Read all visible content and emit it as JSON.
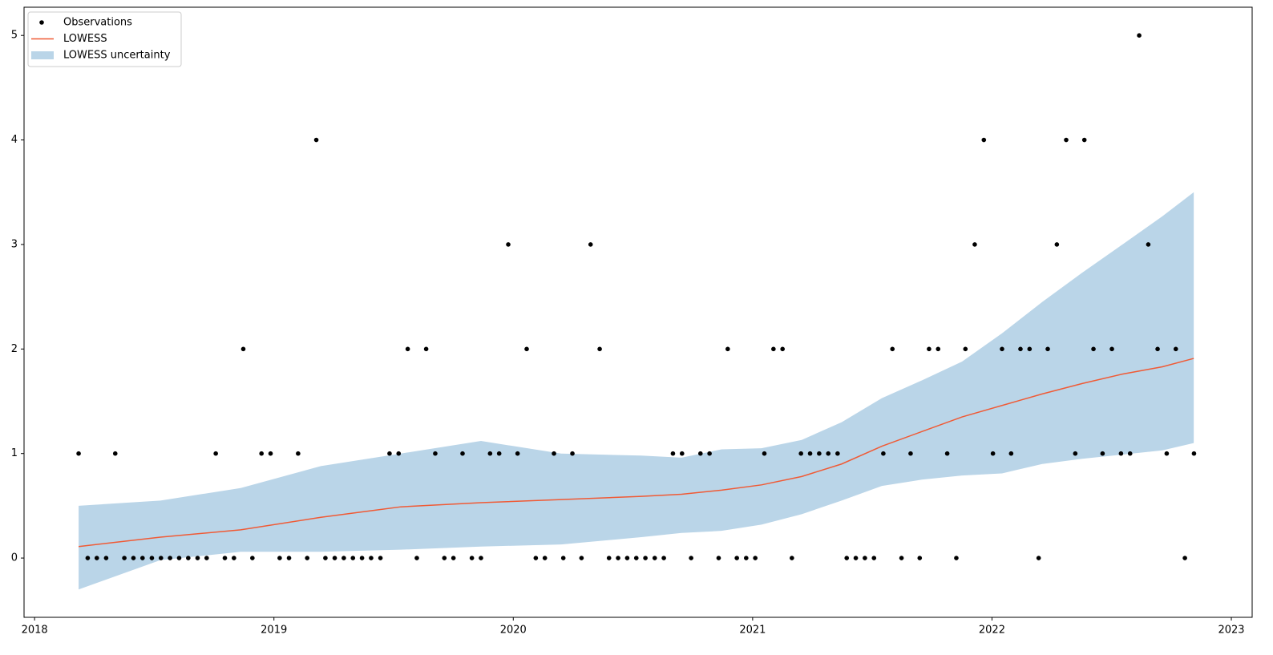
{
  "chart_data": {
    "type": "scatter",
    "xlim": [
      2017.956,
      2023.087
    ],
    "ylim": [
      -0.567,
      5.27
    ],
    "xticks": [
      2018,
      2019,
      2020,
      2021,
      2022,
      2023
    ],
    "yticks": [
      0,
      1,
      2,
      3,
      4,
      5
    ],
    "legend": "upper left",
    "series": [
      {
        "name": "Observations",
        "type": "scatter",
        "color": "#000000",
        "x": [
          2018.184,
          2018.222,
          2018.26,
          2018.299,
          2018.337,
          2018.375,
          2018.413,
          2018.451,
          2018.49,
          2018.528,
          2018.566,
          2018.604,
          2018.642,
          2018.681,
          2018.719,
          2018.757,
          2018.795,
          2018.833,
          2018.872,
          2018.91,
          2018.948,
          2018.986,
          2019.024,
          2019.063,
          2019.101,
          2019.139,
          2019.177,
          2019.215,
          2019.254,
          2019.292,
          2019.33,
          2019.368,
          2019.406,
          2019.445,
          2019.483,
          2019.521,
          2019.559,
          2019.597,
          2019.636,
          2019.674,
          2019.712,
          2019.75,
          2019.788,
          2019.827,
          2019.865,
          2019.903,
          2019.941,
          2019.979,
          2020.018,
          2020.056,
          2020.094,
          2020.132,
          2020.17,
          2020.209,
          2020.247,
          2020.285,
          2020.323,
          2020.361,
          2020.4,
          2020.438,
          2020.476,
          2020.514,
          2020.552,
          2020.591,
          2020.629,
          2020.667,
          2020.705,
          2020.743,
          2020.782,
          2020.82,
          2020.858,
          2020.896,
          2020.934,
          2020.973,
          2021.011,
          2021.049,
          2021.087,
          2021.125,
          2021.164,
          2021.202,
          2021.24,
          2021.278,
          2021.316,
          2021.355,
          2021.393,
          2021.431,
          2021.469,
          2021.507,
          2021.546,
          2021.584,
          2021.622,
          2021.66,
          2021.698,
          2021.737,
          2021.775,
          2021.813,
          2021.851,
          2021.889,
          2021.928,
          2021.966,
          2022.004,
          2022.042,
          2022.08,
          2022.119,
          2022.157,
          2022.195,
          2022.233,
          2022.271,
          2022.31,
          2022.348,
          2022.386,
          2022.424,
          2022.462,
          2022.501,
          2022.539,
          2022.577,
          2022.615,
          2022.653,
          2022.692,
          2022.73,
          2022.768,
          2022.806,
          2022.844
        ],
        "values": [
          1,
          0,
          0,
          0,
          1,
          0,
          0,
          0,
          0,
          0,
          0,
          0,
          0,
          0,
          0,
          1,
          0,
          0,
          2,
          0,
          1,
          1,
          0,
          0,
          1,
          0,
          4,
          0,
          0,
          0,
          0,
          0,
          0,
          0,
          1,
          1,
          2,
          0,
          2,
          1,
          0,
          0,
          1,
          0,
          0,
          1,
          1,
          3,
          1,
          2,
          0,
          0,
          1,
          0,
          1,
          0,
          3,
          2,
          0,
          0,
          0,
          0,
          0,
          0,
          0,
          1,
          1,
          0,
          1,
          1,
          0,
          2,
          0,
          0,
          0,
          1,
          2,
          2,
          0,
          1,
          1,
          1,
          1,
          1,
          0,
          0,
          0,
          0,
          1,
          2,
          0,
          1,
          0,
          2,
          2,
          1,
          0,
          2,
          3,
          4,
          1,
          2,
          1,
          2,
          2,
          0,
          2,
          3,
          4,
          1,
          4,
          2,
          1,
          2,
          1,
          1,
          5,
          3,
          2,
          1,
          2,
          0,
          1
        ]
      },
      {
        "name": "LOWESS",
        "type": "line",
        "color": "#f05a35",
        "x": [
          2018.184,
          2018.526,
          2018.861,
          2019.196,
          2019.53,
          2019.865,
          2020.2,
          2020.535,
          2020.703,
          2020.87,
          2021.037,
          2021.205,
          2021.372,
          2021.54,
          2021.707,
          2021.875,
          2022.042,
          2022.21,
          2022.377,
          2022.545,
          2022.712,
          2022.843
        ],
        "values": [
          0.11,
          0.2,
          0.27,
          0.39,
          0.49,
          0.53,
          0.56,
          0.59,
          0.61,
          0.65,
          0.7,
          0.78,
          0.9,
          1.07,
          1.21,
          1.35,
          1.46,
          1.57,
          1.67,
          1.76,
          1.83,
          1.91
        ]
      },
      {
        "name": "LOWESS uncertainty",
        "type": "band",
        "color": "#bad5e8",
        "x": [
          2018.184,
          2018.526,
          2018.861,
          2019.196,
          2019.53,
          2019.865,
          2020.2,
          2020.535,
          2020.703,
          2020.87,
          2021.037,
          2021.205,
          2021.372,
          2021.54,
          2021.707,
          2021.875,
          2022.042,
          2022.21,
          2022.377,
          2022.545,
          2022.712,
          2022.843
        ],
        "upper": [
          0.5,
          0.55,
          0.67,
          0.88,
          1.0,
          1.12,
          1.0,
          0.98,
          0.96,
          1.04,
          1.05,
          1.13,
          1.3,
          1.53,
          1.7,
          1.88,
          2.15,
          2.45,
          2.73,
          3.0,
          3.27,
          3.5
        ],
        "lower": [
          -0.3,
          -0.02,
          0.06,
          0.06,
          0.08,
          0.11,
          0.13,
          0.2,
          0.24,
          0.26,
          0.32,
          0.42,
          0.55,
          0.69,
          0.75,
          0.79,
          0.81,
          0.9,
          0.95,
          0.99,
          1.03,
          1.1
        ]
      }
    ]
  }
}
